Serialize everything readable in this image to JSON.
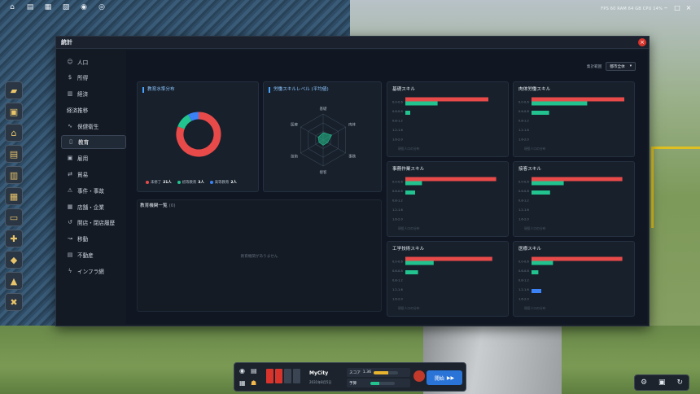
{
  "window": {
    "title": "統計"
  },
  "sidebar": {
    "items": [
      {
        "label": "人口",
        "icon": "people-icon"
      },
      {
        "label": "所得",
        "icon": "dollar-icon"
      },
      {
        "label": "経済",
        "icon": "bar-chart-icon"
      },
      {
        "label": "経済推移",
        "icon": ""
      },
      {
        "label": "保健衛生",
        "icon": "heartbeat-icon"
      },
      {
        "label": "教育",
        "icon": "book-icon",
        "active": true
      },
      {
        "label": "雇用",
        "icon": "briefcase-icon"
      },
      {
        "label": "貿易",
        "icon": "exchange-icon"
      },
      {
        "label": "事件・事故",
        "icon": "warning-icon"
      },
      {
        "label": "店舗・企業",
        "icon": "store-icon"
      },
      {
        "label": "開店・閉店履歴",
        "icon": "history-icon"
      },
      {
        "label": "移動",
        "icon": "route-icon"
      },
      {
        "label": "不動産",
        "icon": "building-icon"
      },
      {
        "label": "インフラ網",
        "icon": "bolt-icon"
      }
    ]
  },
  "filter": {
    "label": "集計範囲",
    "value": "都市全体"
  },
  "education_panel": {
    "title": "教育水準分布",
    "legend": [
      {
        "label": "未修了",
        "value": "21人",
        "color": "#e84a4a"
      },
      {
        "label": "初等教育",
        "value": "3人",
        "color": "#22c38e"
      },
      {
        "label": "高等教育",
        "value": "2人",
        "color": "#3b82f6"
      }
    ]
  },
  "radar_panel": {
    "title": "労働スキルレベル (平均値)",
    "axes": [
      "基礎",
      "肉体",
      "事務",
      "接客",
      "技術",
      "医療"
    ]
  },
  "institutions": {
    "title": "教育機関一覧",
    "count": "(0)",
    "empty": "教育機関がありません"
  },
  "skills": [
    {
      "title": "基礎スキル",
      "ticks": [
        "0.0-0.6",
        "0.6-0.8",
        "0.8-1.2",
        "1.2-1.6",
        "1.6-2.0"
      ],
      "red": 0.85,
      "green": 0.33,
      "green2": 0.05,
      "blue": 0,
      "foot": "現役人口の分布"
    },
    {
      "title": "肉体労働スキル",
      "ticks": [
        "0.0-0.6",
        "0.6-0.8",
        "0.8-1.2",
        "1.2-1.6",
        "1.6-2.0"
      ],
      "red": 0.95,
      "green": 0.57,
      "green2": 0.18,
      "blue": 0,
      "foot": "現役人口の分布"
    },
    {
      "title": "事務作業スキル",
      "ticks": [
        "0.0-0.6",
        "0.6-0.8",
        "0.8-1.2",
        "1.2-1.6",
        "1.6-2.0"
      ],
      "red": 0.93,
      "green": 0.17,
      "green2": 0.1,
      "blue": 0,
      "foot": "現役人口の分布"
    },
    {
      "title": "接客スキル",
      "ticks": [
        "0.0-0.6",
        "0.6-0.8",
        "0.8-1.2",
        "1.2-1.6",
        "1.6-2.0"
      ],
      "red": 0.93,
      "green": 0.33,
      "green2": 0.19,
      "blue": 0,
      "foot": "現役人口の分布"
    },
    {
      "title": "工学技術スキル",
      "ticks": [
        "0.0-0.6",
        "0.6-0.8",
        "0.8-1.2",
        "1.2-1.6",
        "1.6-2.0"
      ],
      "red": 0.89,
      "green": 0.29,
      "green2": 0.13,
      "blue": 0,
      "foot": "現役人口の分布"
    },
    {
      "title": "医療スキル",
      "ticks": [
        "0.0-0.6",
        "0.6-0.8",
        "0.8-1.2",
        "1.2-1.6",
        "1.6-2.0"
      ],
      "red": 0.93,
      "green": 0.22,
      "green2": 0.07,
      "blue": 0.1,
      "foot": "現役人口の分布"
    }
  ],
  "hud": {
    "city": "MyCity",
    "date": "2031年8月5日",
    "score_label": "スコア",
    "score_value": "1.36",
    "budget_label": "予算",
    "start_label": "開始",
    "score_pct": 0.6,
    "budget_pct": 0.35
  },
  "top_status": "FPS 60  RAM 64 GB  CPU 14%"
}
